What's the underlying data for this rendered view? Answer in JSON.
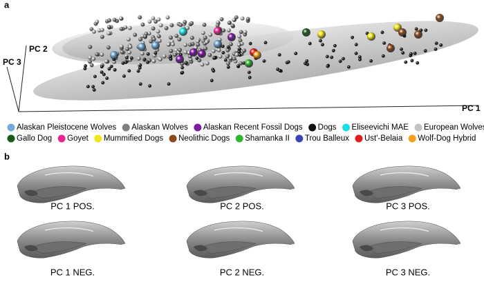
{
  "panel_a": {
    "label": "a",
    "axes": {
      "x": "PC 1",
      "y": "PC 2",
      "z": "PC 3"
    },
    "legend": [
      {
        "name": "Alaskan Pleistocene Wolves",
        "color": "#74a9d8"
      },
      {
        "name": "Alaskan Wolves",
        "color": "#7f7f7f"
      },
      {
        "name": "Alaskan Recent Fossil Dogs",
        "color": "#7a1fa0"
      },
      {
        "name": "Dogs",
        "color": "#111111"
      },
      {
        "name": "Eliseevichi MAE",
        "color": "#19e0e6"
      },
      {
        "name": "European Wolves",
        "color": "#c4c4c4"
      },
      {
        "name": "Gallo Dog",
        "color": "#1b5a1b"
      },
      {
        "name": "Goyet",
        "color": "#e8278f"
      },
      {
        "name": "Mummified Dogs",
        "color": "#f0e41a"
      },
      {
        "name": "Neolithic Dogs",
        "color": "#8a4a1c"
      },
      {
        "name": "Shamanka II",
        "color": "#2fb52f"
      },
      {
        "name": "Trou Balleux",
        "color": "#3a44b8"
      },
      {
        "name": "Ust'-Belaia",
        "color": "#e01c1c"
      },
      {
        "name": "Wolf-Dog Hybrid",
        "color": "#f2a21e"
      }
    ]
  },
  "panel_b": {
    "label": "b",
    "captions": [
      "PC 1 POS.",
      "PC 2 POS.",
      "PC 3 POS.",
      "PC 1 NEG.",
      "PC 2 NEG.",
      "PC 3 NEG."
    ]
  }
}
